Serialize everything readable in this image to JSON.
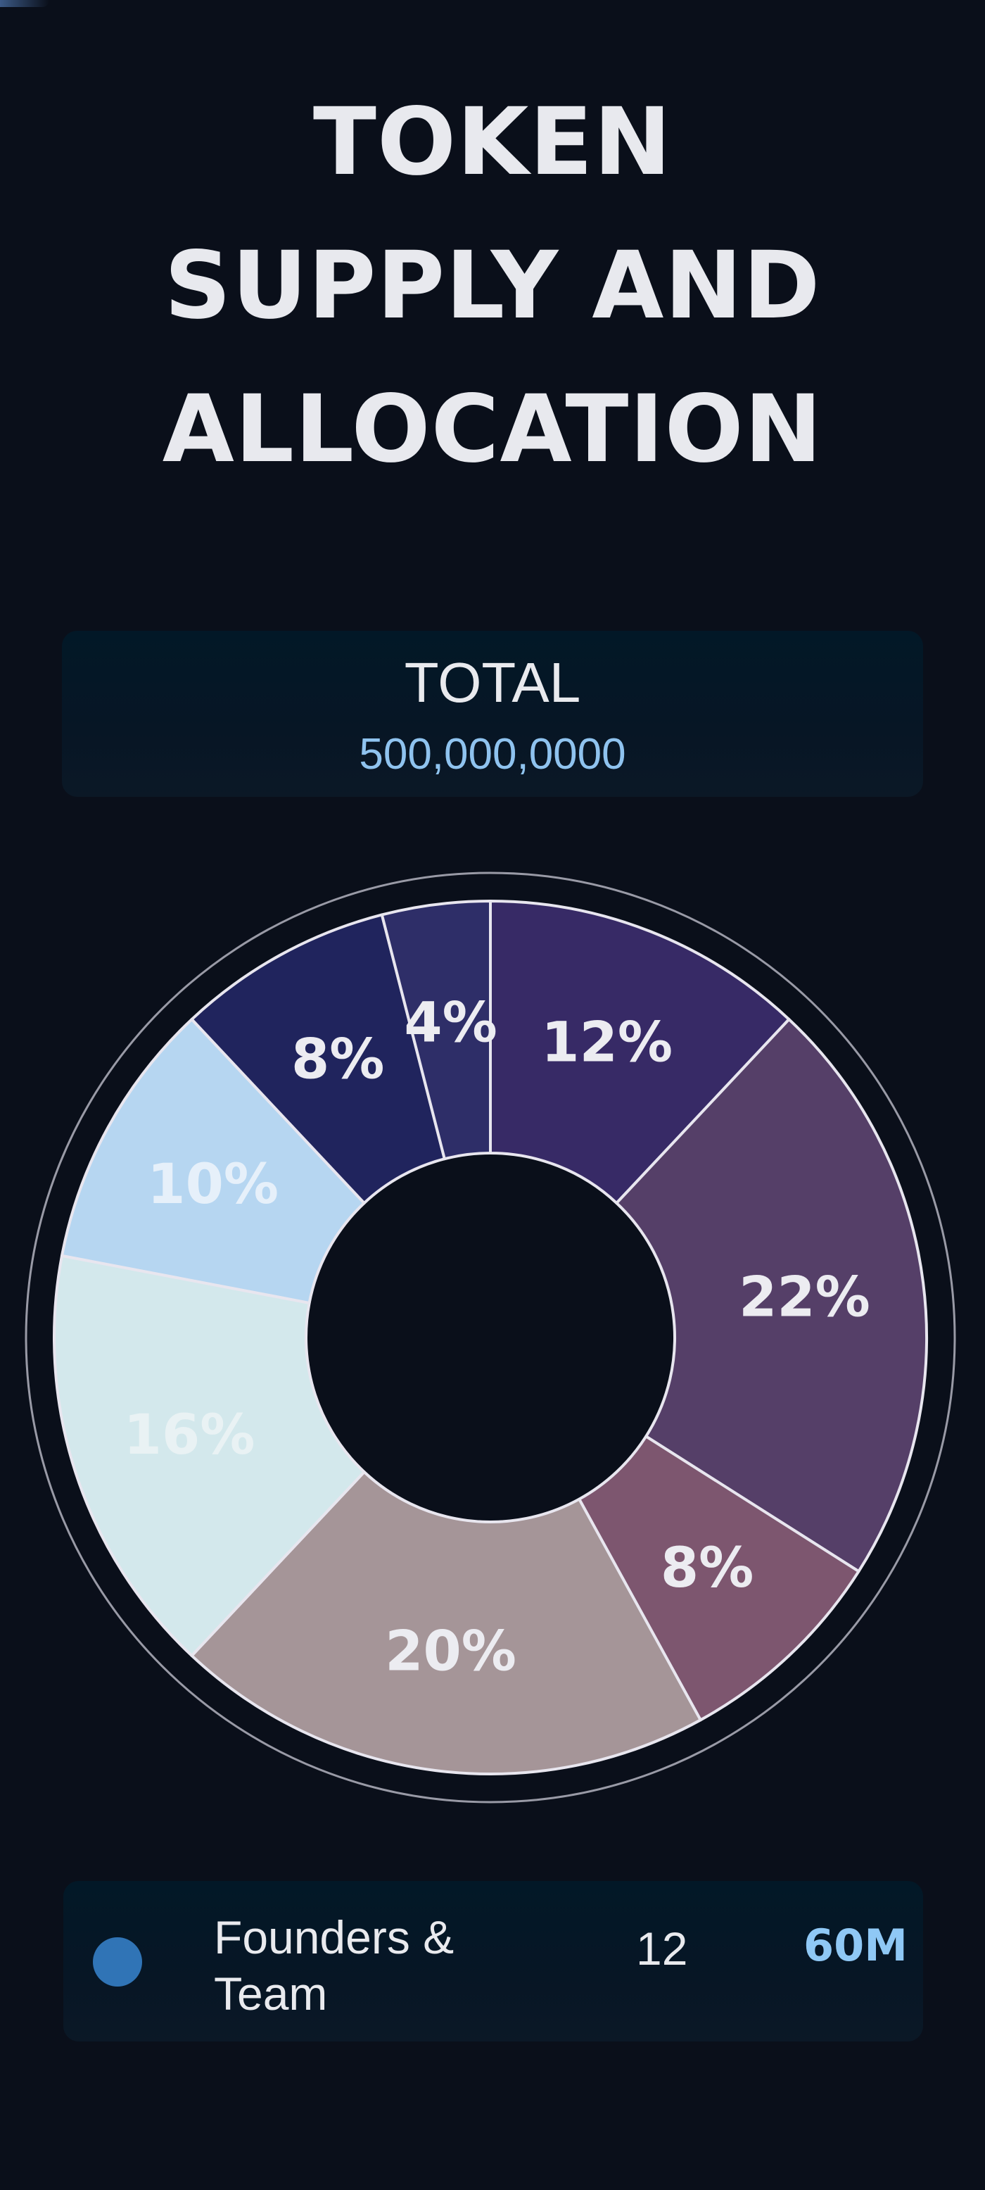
{
  "title_lines": [
    "TOKEN",
    "SUPPLY AND",
    "ALLOCATION"
  ],
  "total": {
    "label": "TOTAL",
    "value": "500,000,0000"
  },
  "chart_data": {
    "type": "pie",
    "variant": "donut",
    "start_angle_deg": 0,
    "direction": "clockwise",
    "slices": [
      {
        "label": "12%",
        "value": 12,
        "color": "#372a66",
        "label_color": "#ececf1"
      },
      {
        "label": "22%",
        "value": 22,
        "color": "#553f68",
        "label_color": "#ececf1"
      },
      {
        "label": "8%",
        "value": 8,
        "color": "#7d566f",
        "label_color": "#ececf1"
      },
      {
        "label": "20%",
        "value": 20,
        "color": "#a59598",
        "label_color": "#ececf1"
      },
      {
        "label": "16%",
        "value": 16,
        "color": "#d3e8ec",
        "label_color": "#e9f2f4"
      },
      {
        "label": "10%",
        "value": 10,
        "color": "#b6d6f1",
        "label_color": "#e6f0fa"
      },
      {
        "label": "8%",
        "value": 8,
        "color": "#20245d",
        "label_color": "#ececf1"
      },
      {
        "label": "4%",
        "value": 4,
        "color": "#2e2e68",
        "label_color": "#ececf1"
      }
    ]
  },
  "legend": [
    {
      "name": "Founders & Team",
      "percent": "12",
      "amount": "60M",
      "color": "#3074b6"
    }
  ],
  "colors": {
    "background": "#0a0f1a",
    "ring": "#c9c9d6",
    "accent": "#8fc3ef"
  }
}
